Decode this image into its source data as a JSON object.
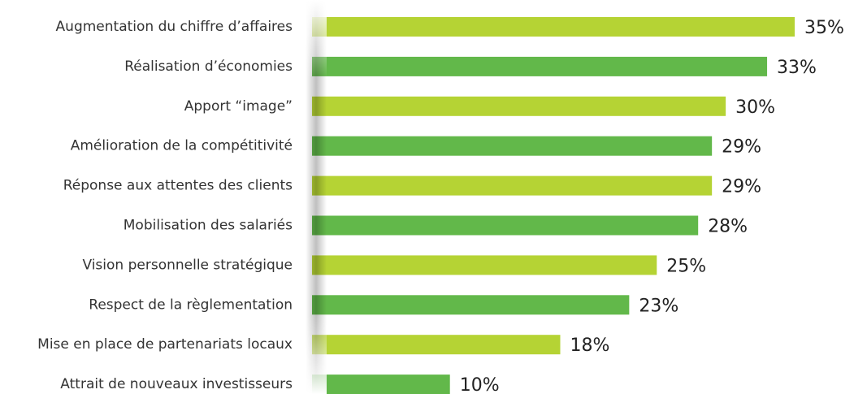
{
  "chart_data": {
    "type": "hbar",
    "categories": [
      "Augmentation du chiffre d’affaires",
      "Réalisation d’économies",
      "Apport “image”",
      "Amélioration de la compétitivité",
      "Réponse aux attentes des clients",
      "Mobilisation des salariés",
      "Vision personnelle stratégique",
      "Respect de la règlementation",
      "Mise en place de partenariats locaux",
      "Attrait de nouveaux investisseurs"
    ],
    "values": [
      35,
      33,
      30,
      29,
      29,
      28,
      25,
      23,
      18,
      10
    ],
    "value_labels": [
      "35%",
      "33%",
      "30%",
      "29%",
      "29%",
      "28%",
      "25%",
      "23%",
      "18%",
      "10%"
    ],
    "colors": [
      "#b5d334",
      "#62b84a",
      "#b5d334",
      "#62b84a",
      "#b5d334",
      "#62b84a",
      "#b5d334",
      "#62b84a",
      "#b5d334",
      "#62b84a"
    ]
  }
}
